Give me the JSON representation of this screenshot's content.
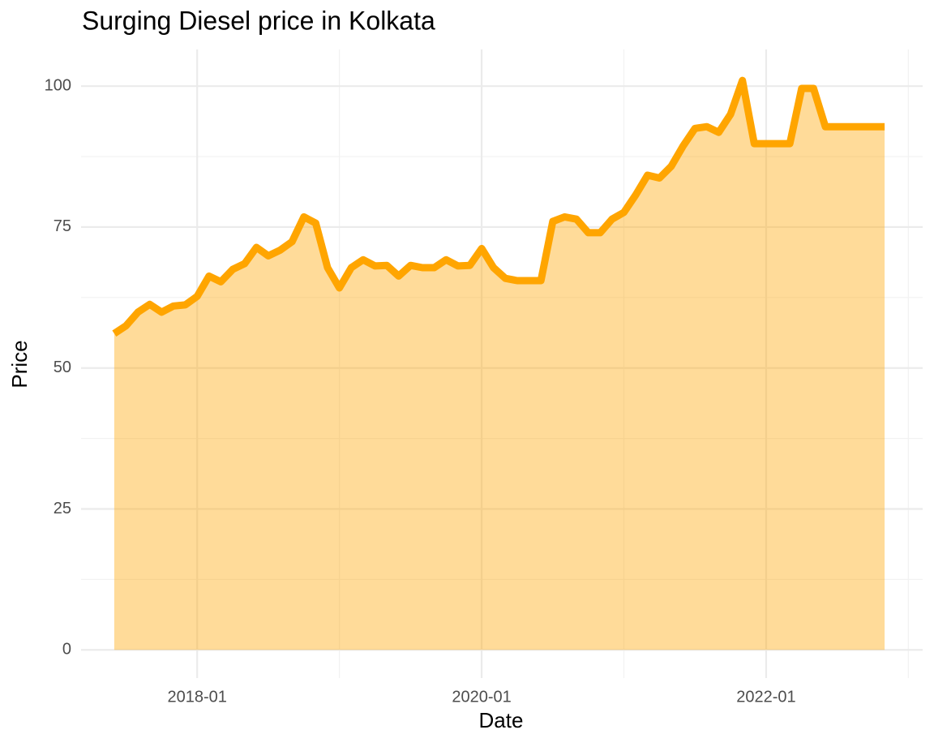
{
  "chart_data": {
    "type": "area",
    "title": "Surging Diesel price in Kolkata",
    "x_label": "Date",
    "y_label": "Price",
    "x": [
      "2017-06",
      "2017-07",
      "2017-08",
      "2017-09",
      "2017-10",
      "2017-11",
      "2017-12",
      "2018-01",
      "2018-02",
      "2018-03",
      "2018-04",
      "2018-05",
      "2018-06",
      "2018-07",
      "2018-08",
      "2018-09",
      "2018-10",
      "2018-11",
      "2018-12",
      "2019-01",
      "2019-02",
      "2019-03",
      "2019-04",
      "2019-05",
      "2019-06",
      "2019-07",
      "2019-08",
      "2019-09",
      "2019-10",
      "2019-11",
      "2019-12",
      "2020-01",
      "2020-02",
      "2020-03",
      "2020-04",
      "2020-05",
      "2020-06",
      "2020-07",
      "2020-08",
      "2020-09",
      "2020-10",
      "2020-11",
      "2020-12",
      "2021-01",
      "2021-02",
      "2021-03",
      "2021-04",
      "2021-05",
      "2021-06",
      "2021-07",
      "2021-08",
      "2021-09",
      "2021-10",
      "2021-11",
      "2021-12",
      "2022-01",
      "2022-02",
      "2022-03",
      "2022-04",
      "2022-05",
      "2022-06",
      "2022-07",
      "2022-08",
      "2022-09",
      "2022-10",
      "2022-11"
    ],
    "values": [
      56.1,
      57.5,
      59.9,
      61.3,
      59.9,
      61.0,
      61.2,
      62.7,
      66.3,
      65.3,
      67.5,
      68.5,
      71.4,
      69.9,
      70.9,
      72.4,
      76.8,
      75.7,
      67.8,
      64.2,
      67.8,
      69.2,
      68.1,
      68.2,
      66.3,
      68.2,
      67.8,
      67.8,
      69.2,
      68.1,
      68.2,
      71.2,
      67.8,
      65.9,
      65.5,
      65.5,
      65.5,
      76.0,
      76.8,
      76.4,
      74.0,
      74.0,
      76.4,
      77.6,
      80.7,
      84.2,
      83.7,
      85.8,
      89.4,
      92.5,
      92.8,
      91.8,
      95.0,
      101.0,
      89.8,
      89.8,
      89.8,
      89.8,
      99.6,
      99.6,
      92.8,
      92.8,
      92.8,
      92.8,
      92.8,
      92.8
    ],
    "color": "#ffa500",
    "fill_opacity": 0.4,
    "xlim": [
      "2017-03",
      "2023-02"
    ],
    "xticks": [
      "2018-01",
      "2020-01",
      "2022-01"
    ],
    "x_minor_ticks": [
      "2019-01",
      "2021-01",
      "2023-01"
    ],
    "ylim": [
      -5,
      106.5
    ],
    "yticks": [
      0,
      25,
      50,
      75,
      100
    ],
    "y_minor_ticks": [
      12.5,
      37.5,
      62.5,
      87.5
    ],
    "grid": true
  }
}
